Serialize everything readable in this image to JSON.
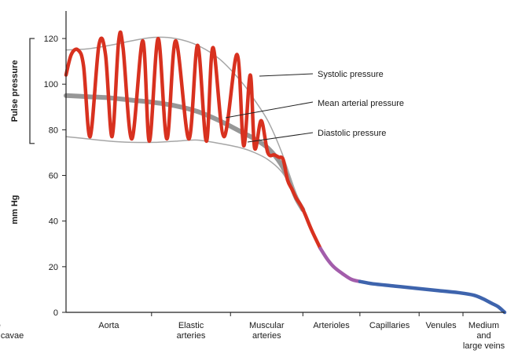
{
  "chart_data": {
    "type": "line",
    "title": "",
    "ylabel": "mm Hg",
    "bracket_label": "Pulse pressure",
    "ylim": [
      0,
      130
    ],
    "yticks": [
      0,
      20,
      40,
      60,
      80,
      100,
      120
    ],
    "xlim": [
      0,
      10
    ],
    "categories": [
      "Aorta",
      "Elastic arteries",
      "Muscular arteries",
      "Arterioles",
      "Capillaries",
      "Venules",
      "Medium and large veins",
      "Venae cavae"
    ],
    "category_dividers": [
      0.0,
      1.95,
      3.75,
      5.4,
      6.7,
      8.05,
      9.05,
      10.0
    ],
    "bracket_range": [
      74,
      120
    ],
    "annotations": [
      {
        "text": "Systolic pressure",
        "target": "systolic"
      },
      {
        "text": "Mean arterial pressure",
        "target": "mean"
      },
      {
        "text": "Diastolic pressure",
        "target": "diastolic"
      }
    ],
    "series": [
      {
        "key": "systolic",
        "color": "#a6a6a6",
        "x": [
          0.0,
          0.5,
          1.0,
          1.5,
          2.0,
          2.5,
          3.0,
          3.5,
          4.0,
          4.3,
          4.6,
          4.9,
          5.1,
          5.25,
          5.4
        ],
        "y": [
          115,
          115.5,
          117,
          119,
          120.5,
          120,
          117,
          111,
          101,
          93,
          84,
          71,
          60,
          52,
          46
        ]
      },
      {
        "key": "diastolic",
        "color": "#a6a6a6",
        "x": [
          0.0,
          0.5,
          1.0,
          1.5,
          2.0,
          2.5,
          3.0,
          3.5,
          4.0,
          4.3,
          4.6,
          4.9,
          5.1,
          5.25,
          5.4
        ],
        "y": [
          77,
          76,
          75,
          74.5,
          74.5,
          75,
          75.5,
          74,
          72,
          70,
          67,
          62,
          56,
          50,
          45
        ]
      },
      {
        "key": "mean",
        "color": "#8c8c8c",
        "x": [
          0.0,
          0.5,
          1.0,
          1.5,
          2.0,
          2.5,
          3.0,
          3.5,
          4.0,
          4.3,
          4.6,
          4.9,
          5.1,
          5.25,
          5.4
        ],
        "y": [
          95,
          94.5,
          94,
          93,
          92,
          90.5,
          88,
          84,
          79,
          76,
          72,
          65,
          57,
          50,
          45
        ]
      },
      {
        "key": "pressure-wave",
        "color": "#d8311f",
        "x": [
          0.0,
          0.12,
          0.27,
          0.4,
          0.55,
          0.75,
          0.9,
          1.05,
          1.2,
          1.3,
          1.5,
          1.75,
          1.9,
          2.1,
          2.3,
          2.5,
          2.8,
          3.0,
          3.2,
          3.35,
          3.6,
          3.9,
          4.05,
          4.2,
          4.3,
          4.45,
          4.6,
          4.75,
          4.85,
          4.95,
          5.05,
          5.15,
          5.25,
          5.35,
          5.45,
          5.6,
          5.8
        ],
        "y": [
          104,
          113,
          115,
          108,
          77,
          117,
          113,
          77,
          119,
          116,
          76,
          119,
          75,
          120,
          76,
          119,
          76,
          117,
          75,
          116,
          77,
          113,
          73,
          104,
          72,
          84,
          70,
          69,
          68,
          67,
          58,
          54,
          50,
          47,
          43,
          36,
          28
        ]
      },
      {
        "key": "capillaries",
        "color": "#a35dab",
        "x": [
          5.8,
          5.95,
          6.1,
          6.3,
          6.5,
          6.7
        ],
        "y": [
          28,
          23.5,
          20,
          17,
          14.5,
          13.5
        ]
      },
      {
        "key": "veins",
        "color": "#3e64ad",
        "x": [
          6.7,
          7.0,
          7.5,
          8.0,
          8.5,
          9.0,
          9.3,
          9.5,
          9.7,
          9.85,
          10.0
        ],
        "y": [
          13.5,
          12.5,
          11.5,
          10.5,
          9.5,
          8.5,
          7.5,
          6,
          4,
          2.5,
          0
        ]
      }
    ]
  }
}
